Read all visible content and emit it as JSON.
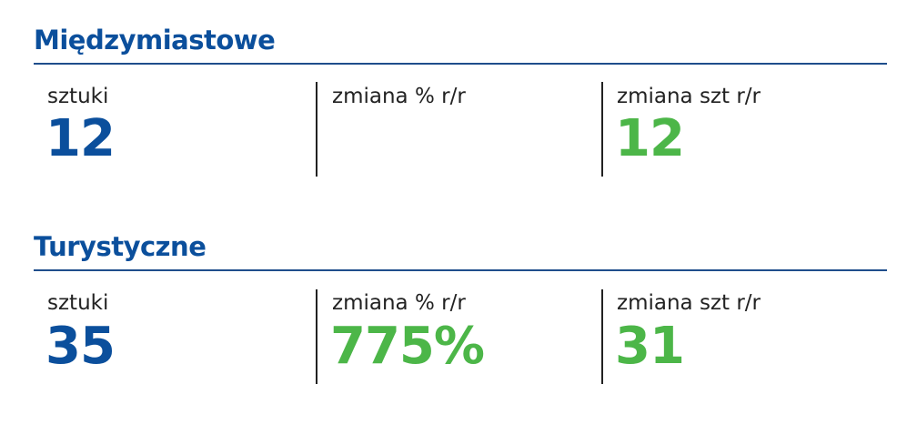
{
  "sections": [
    {
      "title": "Międzymiastowe",
      "cells": [
        {
          "label": "sztuki",
          "value": "12"
        },
        {
          "label": "zmiana % r/r"
        },
        {
          "label": "zmiana szt r/r",
          "value": "12"
        }
      ]
    },
    {
      "title": "Turystyczne",
      "cells": [
        {
          "label": "sztuki",
          "value": "35"
        },
        {
          "label": "zmiana % r/r",
          "value": "775%"
        },
        {
          "label": "zmiana szt r/r",
          "value": "31"
        }
      ]
    }
  ]
}
